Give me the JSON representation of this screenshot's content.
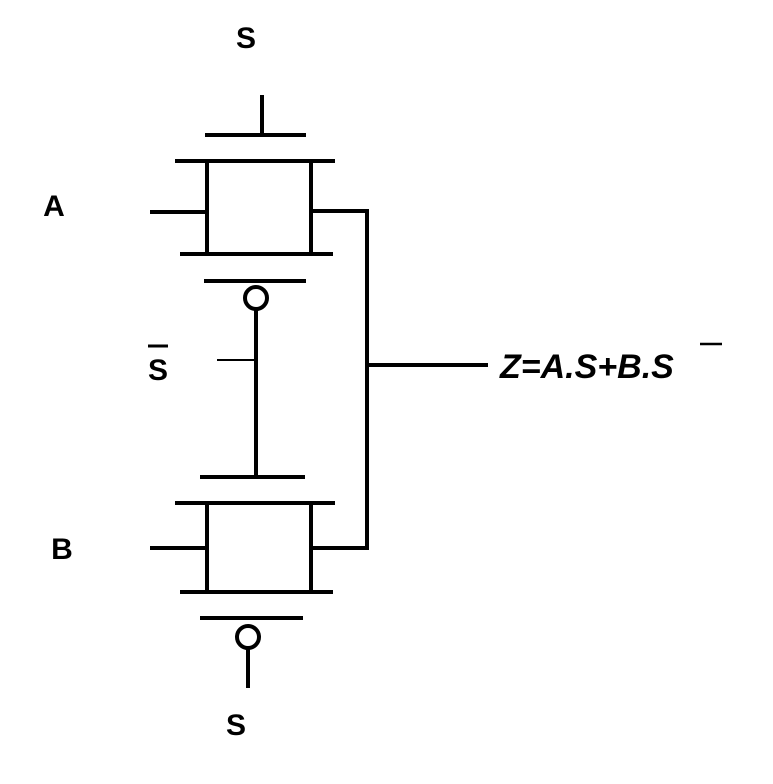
{
  "labels": {
    "select_top": "S",
    "input_a": "A",
    "select_bar": "S",
    "input_b": "B",
    "select_bottom": "S"
  },
  "output": {
    "expression_prefix": "Z=A.S+B.",
    "expression_bar": "S"
  },
  "colors": {
    "line": "#000000",
    "background": "#ffffff"
  }
}
